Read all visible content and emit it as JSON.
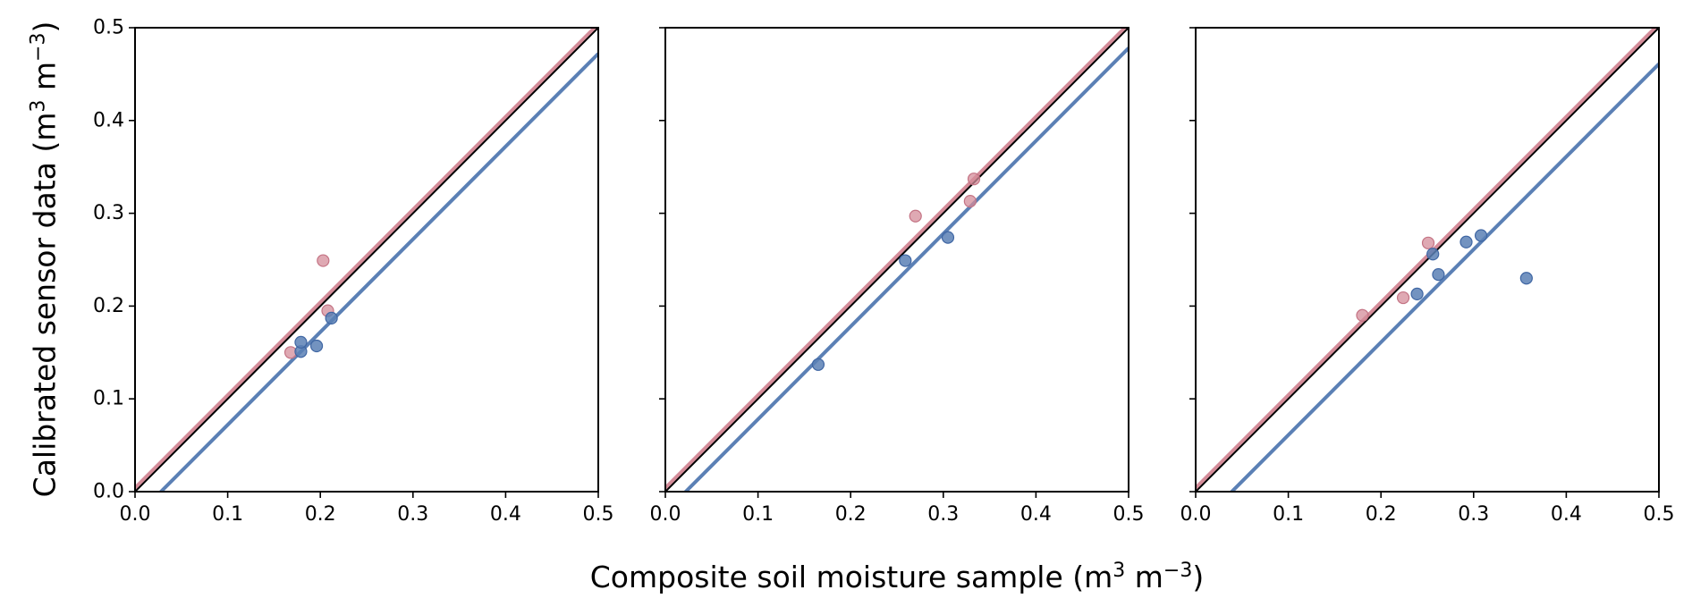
{
  "chart_data": [
    {
      "type": "scatter",
      "xlim": [
        0.0,
        0.5
      ],
      "ylim": [
        0.0,
        0.5
      ],
      "xticks": [
        "0.0",
        "0.1",
        "0.2",
        "0.3",
        "0.4",
        "0.5"
      ],
      "yticks": [
        "0.0",
        "0.1",
        "0.2",
        "0.3",
        "0.4",
        "0.5"
      ],
      "grid": false,
      "series": [
        {
          "color": "#d48c99",
          "x": [
            0.168,
            0.203,
            0.208
          ],
          "y": [
            0.15,
            0.249,
            0.195
          ],
          "fit": {
            "intercept": 0.004,
            "slope": 1.0
          }
        },
        {
          "color": "#5b80b5",
          "x": [
            0.179,
            0.179,
            0.196,
            0.212
          ],
          "y": [
            0.151,
            0.161,
            0.157,
            0.187
          ],
          "fit": {
            "intercept": -0.028,
            "slope": 1.0
          }
        }
      ],
      "reference_line": {
        "color": "#000000",
        "slope": 1.0,
        "intercept": 0.0
      }
    },
    {
      "type": "scatter",
      "xlim": [
        0.0,
        0.5
      ],
      "ylim": [
        0.0,
        0.5
      ],
      "xticks": [
        "0.0",
        "0.1",
        "0.2",
        "0.3",
        "0.4",
        "0.5"
      ],
      "yticks": [],
      "grid": false,
      "series": [
        {
          "color": "#d48c99",
          "x": [
            0.27,
            0.329,
            0.333
          ],
          "y": [
            0.297,
            0.313,
            0.337
          ],
          "fit": {
            "intercept": 0.004,
            "slope": 1.0
          }
        },
        {
          "color": "#5b80b5",
          "x": [
            0.165,
            0.259,
            0.305
          ],
          "y": [
            0.137,
            0.249,
            0.274
          ],
          "fit": {
            "intercept": -0.022,
            "slope": 1.0
          }
        }
      ],
      "reference_line": {
        "color": "#000000",
        "slope": 1.0,
        "intercept": 0.0
      }
    },
    {
      "type": "scatter",
      "xlim": [
        0.0,
        0.5
      ],
      "ylim": [
        0.0,
        0.5
      ],
      "xticks": [
        "0.0",
        "0.1",
        "0.2",
        "0.3",
        "0.4",
        "0.5"
      ],
      "yticks": [],
      "grid": false,
      "series": [
        {
          "color": "#d48c99",
          "x": [
            0.18,
            0.224,
            0.251
          ],
          "y": [
            0.19,
            0.209,
            0.268
          ],
          "fit": {
            "intercept": 0.004,
            "slope": 1.0
          }
        },
        {
          "color": "#5b80b5",
          "x": [
            0.239,
            0.256,
            0.262,
            0.292,
            0.308,
            0.357
          ],
          "y": [
            0.213,
            0.256,
            0.234,
            0.269,
            0.276,
            0.23
          ],
          "fit": {
            "intercept": -0.039,
            "slope": 1.0
          }
        }
      ],
      "reference_line": {
        "color": "#000000",
        "slope": 1.0,
        "intercept": 0.0
      }
    }
  ],
  "labels": {
    "ylabel_text": "Calibrated sensor data (m",
    "ylabel_sup1": "3",
    "ylabel_mid": " m",
    "ylabel_sup2": "−3",
    "ylabel_end": ")",
    "xlabel_text": "Composite soil moisture sample (m",
    "xlabel_sup1": "3",
    "xlabel_mid": " m",
    "xlabel_sup2": "−3",
    "xlabel_end": ")"
  }
}
